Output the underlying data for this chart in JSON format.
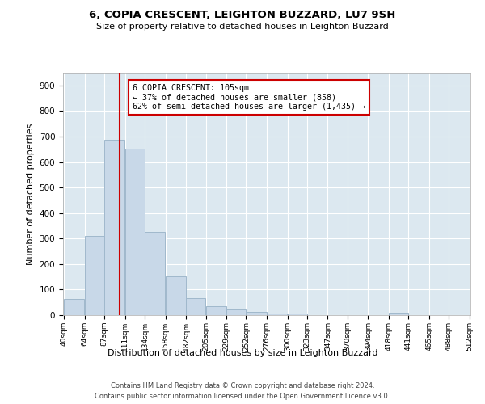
{
  "title": "6, COPIA CRESCENT, LEIGHTON BUZZARD, LU7 9SH",
  "subtitle": "Size of property relative to detached houses in Leighton Buzzard",
  "xlabel": "Distribution of detached houses by size in Leighton Buzzard",
  "ylabel": "Number of detached properties",
  "bar_color": "#c8d8e8",
  "bar_edge_color": "#a0b8cc",
  "bin_labels": [
    "40sqm",
    "64sqm",
    "87sqm",
    "111sqm",
    "134sqm",
    "158sqm",
    "182sqm",
    "205sqm",
    "229sqm",
    "252sqm",
    "276sqm",
    "300sqm",
    "323sqm",
    "347sqm",
    "370sqm",
    "394sqm",
    "418sqm",
    "441sqm",
    "465sqm",
    "488sqm",
    "512sqm"
  ],
  "bin_edges": [
    40,
    64,
    87,
    111,
    134,
    158,
    182,
    205,
    229,
    252,
    276,
    300,
    323,
    347,
    370,
    394,
    418,
    441,
    465,
    488,
    512
  ],
  "bar_heights": [
    63,
    310,
    688,
    652,
    327,
    152,
    66,
    35,
    22,
    14,
    5,
    5,
    0,
    0,
    0,
    0,
    10,
    0,
    0,
    0
  ],
  "property_size": 105,
  "vline_color": "#cc0000",
  "annotation_line1": "6 COPIA CRESCENT: 105sqm",
  "annotation_line2": "← 37% of detached houses are smaller (858)",
  "annotation_line3": "62% of semi-detached houses are larger (1,435) →",
  "annotation_box_color": "#ffffff",
  "annotation_box_edge_color": "#cc0000",
  "ylim": [
    0,
    950
  ],
  "yticks": [
    0,
    100,
    200,
    300,
    400,
    500,
    600,
    700,
    800,
    900
  ],
  "grid_color": "#ffffff",
  "bg_color": "#dce8f0",
  "footer_line1": "Contains HM Land Registry data © Crown copyright and database right 2024.",
  "footer_line2": "Contains public sector information licensed under the Open Government Licence v3.0."
}
